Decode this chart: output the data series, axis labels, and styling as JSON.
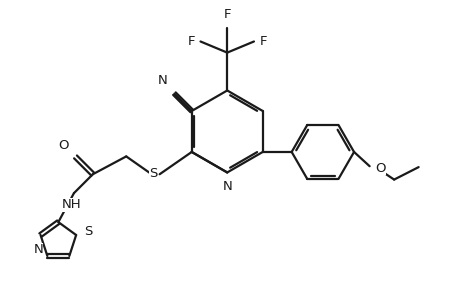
{
  "bg_color": "#ffffff",
  "line_color": "#1a1a1a",
  "line_width": 1.6,
  "font_size": 9.5,
  "figsize": [
    4.5,
    2.91
  ],
  "dpi": 100,
  "xlim": [
    0,
    10
  ],
  "ylim": [
    0,
    6.47
  ]
}
